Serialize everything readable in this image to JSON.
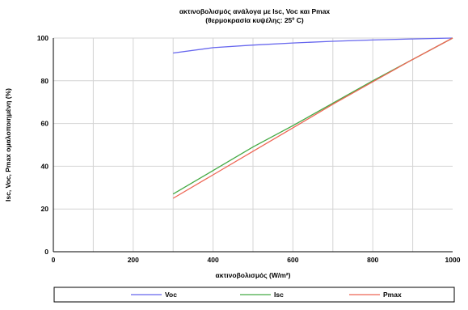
{
  "chart_data": {
    "type": "line",
    "title": "ακτινοβολισμός ανάλογα με Isc, Voc και Pmax",
    "subtitle": "(θερμοκρασία κυψέλης: 25º C)",
    "xlabel": "ακτινοβολισμός (W/m²)",
    "ylabel": "Isc, Voc, Pmax ομαλοποιημένη (%)",
    "xlim": [
      0,
      1000
    ],
    "ylim": [
      0,
      100
    ],
    "xticks": [
      0,
      200,
      400,
      600,
      800,
      1000
    ],
    "yticks": [
      0,
      20,
      40,
      60,
      80,
      100
    ],
    "grid": true,
    "legend_position": "bottom",
    "series": [
      {
        "name": "Voc",
        "color": "#6666ee",
        "x": [
          300,
          400,
          500,
          600,
          700,
          800,
          900,
          1000
        ],
        "y": [
          93,
          95.5,
          96.7,
          97.7,
          98.5,
          99.1,
          99.6,
          100
        ]
      },
      {
        "name": "Isc",
        "color": "#44aa44",
        "x": [
          300,
          400,
          500,
          600,
          700,
          800,
          900,
          1000
        ],
        "y": [
          27,
          38,
          49,
          59,
          69.5,
          80,
          90,
          100
        ]
      },
      {
        "name": "Pmax",
        "color": "#ee6655",
        "x": [
          300,
          400,
          500,
          600,
          700,
          800,
          900,
          1000
        ],
        "y": [
          25,
          36,
          47,
          58,
          69,
          79.5,
          90,
          100
        ]
      }
    ]
  }
}
